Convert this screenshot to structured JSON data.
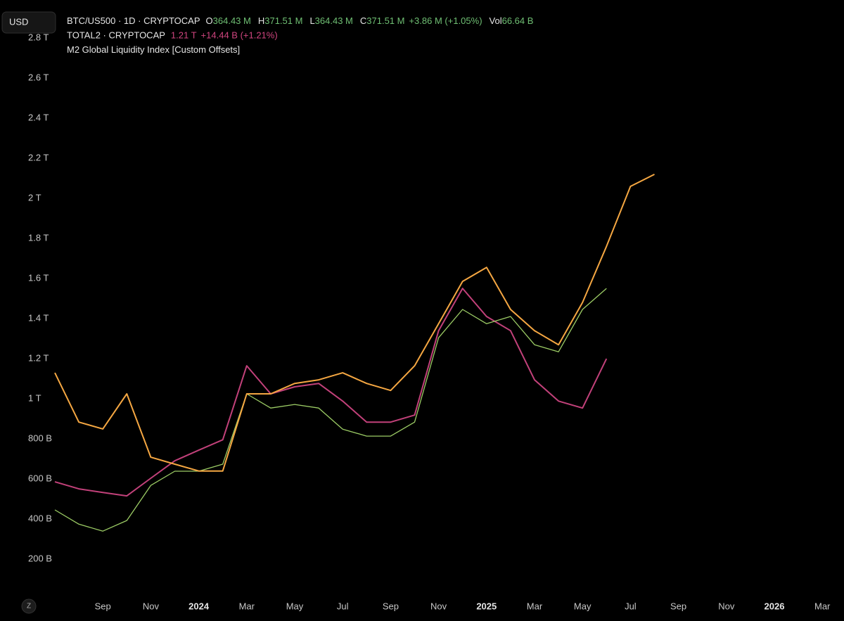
{
  "chart_data": {
    "type": "line",
    "currency": "USD",
    "scale_button": "Z",
    "categories": [
      null,
      null,
      "Sep",
      null,
      "Nov",
      null,
      "2024",
      null,
      "Mar",
      null,
      "May",
      null,
      "Jul",
      null,
      "Sep",
      null,
      "Nov",
      null,
      "2025",
      null,
      "Mar",
      null,
      "May",
      null,
      "Jul",
      null,
      "Sep",
      null,
      "Nov",
      null,
      "2026",
      null,
      "Mar"
    ],
    "bold_categories": [
      "2024",
      "2025",
      "2026"
    ],
    "ylim": [
      25,
      2990
    ],
    "yticks": [
      {
        "value": 200,
        "label": "200 B"
      },
      {
        "value": 400,
        "label": "400 B"
      },
      {
        "value": 600,
        "label": "600 B"
      },
      {
        "value": 800,
        "label": "800 B"
      },
      {
        "value": 1000,
        "label": "1 T"
      },
      {
        "value": 1200,
        "label": "1.2 T"
      },
      {
        "value": 1400,
        "label": "1.4 T"
      },
      {
        "value": 1600,
        "label": "1.6 T"
      },
      {
        "value": 1800,
        "label": "1.8 T"
      },
      {
        "value": 2000,
        "label": "2 T"
      },
      {
        "value": 2200,
        "label": "2.2 T"
      },
      {
        "value": 2400,
        "label": "2.4 T"
      },
      {
        "value": 2600,
        "label": "2.6 T"
      },
      {
        "value": 2800,
        "label": "2.8 T"
      }
    ],
    "grid": false,
    "series": [
      {
        "name": "BTC/US500 · 1D · CRYPTOCAP",
        "color": "#9ccc65",
        "stats_color": "#6fbf73",
        "stats": [
          {
            "label": "O",
            "value": "364.43 M"
          },
          {
            "label": "H",
            "value": "371.51 M"
          },
          {
            "label": "L",
            "value": "364.43 M"
          },
          {
            "label": "C",
            "value": "371.51 M"
          },
          {
            "label": null,
            "value": "+3.86 M (+1.05%)"
          },
          {
            "label": "Vol",
            "value": "66.64 B"
          }
        ],
        "values": [
          446,
          375,
          340,
          393,
          568,
          639,
          639,
          674,
          1025,
          954,
          972,
          954,
          849,
          814,
          814,
          884,
          1305,
          1446,
          1375,
          1411,
          1270,
          1235,
          1446,
          1551,
          null,
          null,
          null,
          null,
          null,
          null,
          null,
          null,
          null
        ]
      },
      {
        "name": "TOTAL2 · CRYPTOCAP",
        "color": "#c2417a",
        "stats_color": "#d0457f",
        "stats": [
          {
            "label": null,
            "value": "1.21 T"
          },
          {
            "label": null,
            "value": "+14.44 B (+1.21%)"
          }
        ],
        "values": [
          586,
          551,
          533,
          516,
          604,
          691,
          744,
          796,
          1165,
          1025,
          1060,
          1077,
          989,
          884,
          884,
          919,
          1340,
          1551,
          1411,
          1340,
          1095,
          989,
          954,
          1200,
          null,
          null,
          null,
          null,
          null,
          null,
          null,
          null,
          null
        ]
      },
      {
        "name": "M2 Global Liquidity Index [Custom Offsets]",
        "color": "#f5a742",
        "stats_color": "#f5a742",
        "stats": [],
        "values": [
          1130,
          884,
          850,
          1025,
          709,
          674,
          640,
          640,
          1025,
          1025,
          1077,
          1095,
          1130,
          1077,
          1042,
          1165,
          1375,
          1586,
          1656,
          1446,
          1340,
          1270,
          1481,
          1761,
          2060,
          2120,
          null,
          null,
          null,
          null,
          null,
          null,
          null
        ]
      }
    ]
  }
}
